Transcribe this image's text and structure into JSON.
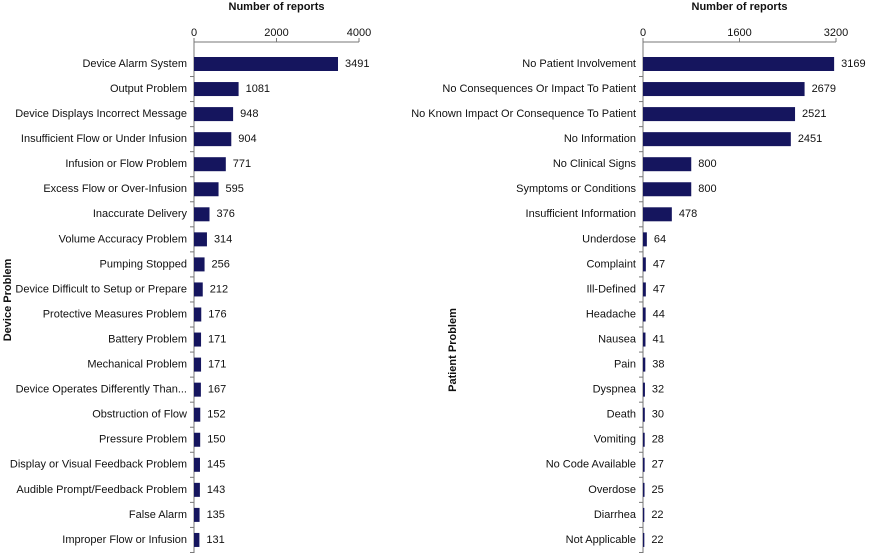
{
  "chart_data": [
    {
      "type": "barh",
      "xlabel": "Number of reports",
      "ylabel": "Device Problem",
      "color": "#15155e",
      "categories": [
        "Device Alarm System",
        "Output Problem",
        "Device Displays Incorrect Message",
        "Insufficient Flow or Under Infusion",
        "Infusion or Flow Problem",
        "Excess Flow or Over-Infusion",
        "Inaccurate Delivery",
        "Volume Accuracy Problem",
        "Pumping Stopped",
        "Device Difficult to Setup or Prepare",
        "Protective Measures Problem",
        "Battery Problem",
        "Mechanical Problem",
        "Device Operates Differently Than...",
        "Obstruction of Flow",
        "Pressure Problem",
        "Display or Visual Feedback Problem",
        "Audible Prompt/Feedback Problem",
        "False Alarm",
        "Improper Flow or Infusion"
      ],
      "values": [
        3491,
        1081,
        948,
        904,
        771,
        595,
        376,
        314,
        256,
        212,
        176,
        171,
        171,
        167,
        152,
        150,
        145,
        143,
        135,
        131
      ],
      "xlim": [
        0,
        4000
      ],
      "xticks": [
        0,
        2000,
        4000
      ]
    },
    {
      "type": "barh",
      "xlabel": "Number of reports",
      "ylabel": "Patient Problem",
      "color": "#15155e",
      "categories": [
        "No Patient Involvement",
        "No Consequences Or Impact To Patient",
        "No Known Impact Or Consequence To Patient",
        "No Information",
        "No Clinical Signs",
        "Symptoms or Conditions",
        "Insufficient Information",
        "Underdose",
        "Complaint",
        "Ill-Defined",
        "Headache",
        "Nausea",
        "Pain",
        "Dyspnea",
        "Death",
        "Vomiting",
        "No Code Available",
        "Overdose",
        "Diarrhea",
        "Not Applicable"
      ],
      "values": [
        3169,
        2679,
        2521,
        2451,
        800,
        800,
        478,
        64,
        47,
        47,
        44,
        41,
        38,
        32,
        30,
        28,
        27,
        25,
        22,
        22
      ],
      "xlim": [
        0,
        3200
      ],
      "xticks": [
        0,
        1600,
        3200
      ]
    }
  ]
}
